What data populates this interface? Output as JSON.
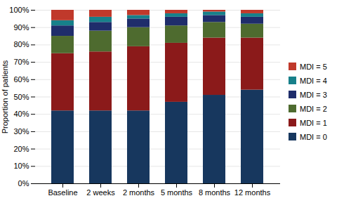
{
  "chart_data": {
    "type": "bar",
    "stacked": true,
    "categories": [
      "Baseline",
      "2 weeks",
      "2 months",
      "5 months",
      "8 months",
      "12 months"
    ],
    "series": [
      {
        "name": "MDI = 0",
        "color": "#17375E",
        "values": [
          0.42,
          0.42,
          0.42,
          0.47,
          0.51,
          0.54
        ]
      },
      {
        "name": "MDI = 1",
        "color": "#8B1A1A",
        "values": [
          0.33,
          0.34,
          0.37,
          0.34,
          0.33,
          0.3
        ]
      },
      {
        "name": "MDI = 2",
        "color": "#4E6B2F",
        "values": [
          0.1,
          0.12,
          0.11,
          0.1,
          0.09,
          0.08
        ]
      },
      {
        "name": "MDI = 3",
        "color": "#1F2D6B",
        "values": [
          0.06,
          0.05,
          0.05,
          0.05,
          0.04,
          0.04
        ]
      },
      {
        "name": "MDI = 4",
        "color": "#17808A",
        "values": [
          0.03,
          0.03,
          0.02,
          0.02,
          0.02,
          0.02
        ]
      },
      {
        "name": "MDI = 5",
        "color": "#C0392B",
        "values": [
          0.06,
          0.04,
          0.03,
          0.02,
          0.01,
          0.02
        ]
      }
    ],
    "ylabel": "Proportion of patients",
    "ylim": [
      0,
      1.0
    ],
    "yticks": [
      {
        "value": 0,
        "label": "0%"
      },
      {
        "value": 0.1,
        "label": "10%"
      },
      {
        "value": 0.2,
        "label": "20%"
      },
      {
        "value": 0.3,
        "label": "30%"
      },
      {
        "value": 0.4,
        "label": "40%"
      },
      {
        "value": 0.5,
        "label": "50%"
      },
      {
        "value": 0.6,
        "label": "60%"
      },
      {
        "value": 0.7,
        "label": "70%"
      },
      {
        "value": 0.8,
        "label": "80%"
      },
      {
        "value": 0.9,
        "label": "90%"
      },
      {
        "value": 1.0,
        "label": "100%"
      }
    ],
    "grid": true,
    "legend": "right"
  }
}
